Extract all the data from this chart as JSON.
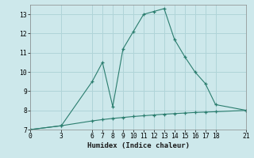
{
  "xlabel": "Humidex (Indice chaleur)",
  "line1_x": [
    0,
    3,
    6,
    7,
    8,
    9,
    10,
    11,
    12,
    13,
    14,
    15,
    16,
    17,
    18,
    21
  ],
  "line1_y": [
    7.0,
    7.2,
    9.5,
    10.5,
    8.2,
    11.2,
    12.1,
    13.0,
    13.15,
    13.3,
    11.7,
    10.8,
    10.0,
    9.4,
    8.3,
    8.0
  ],
  "line2_x": [
    0,
    3,
    6,
    7,
    8,
    9,
    10,
    11,
    12,
    13,
    14,
    15,
    16,
    17,
    18,
    21
  ],
  "line2_y": [
    7.0,
    7.2,
    7.45,
    7.52,
    7.58,
    7.63,
    7.68,
    7.72,
    7.76,
    7.8,
    7.83,
    7.86,
    7.89,
    7.91,
    7.93,
    8.0
  ],
  "line_color": "#2a7d6e",
  "bg_color": "#cde8eb",
  "grid_color": "#b0d4d8",
  "xlim": [
    0,
    21
  ],
  "ylim": [
    7,
    13.5
  ],
  "yticks": [
    7,
    8,
    9,
    10,
    11,
    12,
    13
  ],
  "xticks": [
    0,
    3,
    6,
    7,
    8,
    9,
    10,
    11,
    12,
    13,
    14,
    15,
    16,
    17,
    18,
    21
  ],
  "marker": "+"
}
